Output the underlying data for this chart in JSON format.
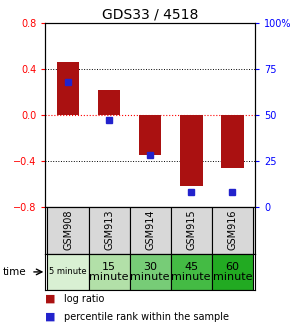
{
  "title": "GDS33 / 4518",
  "samples": [
    "GSM908",
    "GSM913",
    "GSM914",
    "GSM915",
    "GSM916"
  ],
  "time_labels": [
    "5 minute",
    "15\nminute",
    "30\nminute",
    "45\nminute",
    "60\nminute"
  ],
  "time_colors": [
    "#d9f0d3",
    "#b2e0a8",
    "#77cc77",
    "#44bb44",
    "#22aa22"
  ],
  "log_ratios": [
    0.46,
    0.22,
    -0.35,
    -0.62,
    -0.46
  ],
  "percentile_ranks_pct": [
    68,
    47,
    28,
    8,
    8
  ],
  "bar_color": "#aa1111",
  "dot_color": "#2222cc",
  "ylim": [
    -0.8,
    0.8
  ],
  "yticks_left": [
    -0.8,
    -0.4,
    0.0,
    0.4,
    0.8
  ],
  "yticks_right": [
    0,
    25,
    50,
    75,
    100
  ],
  "grid_values": [
    -0.4,
    0.0,
    0.4
  ],
  "background_color": "#ffffff",
  "bar_width": 0.55
}
